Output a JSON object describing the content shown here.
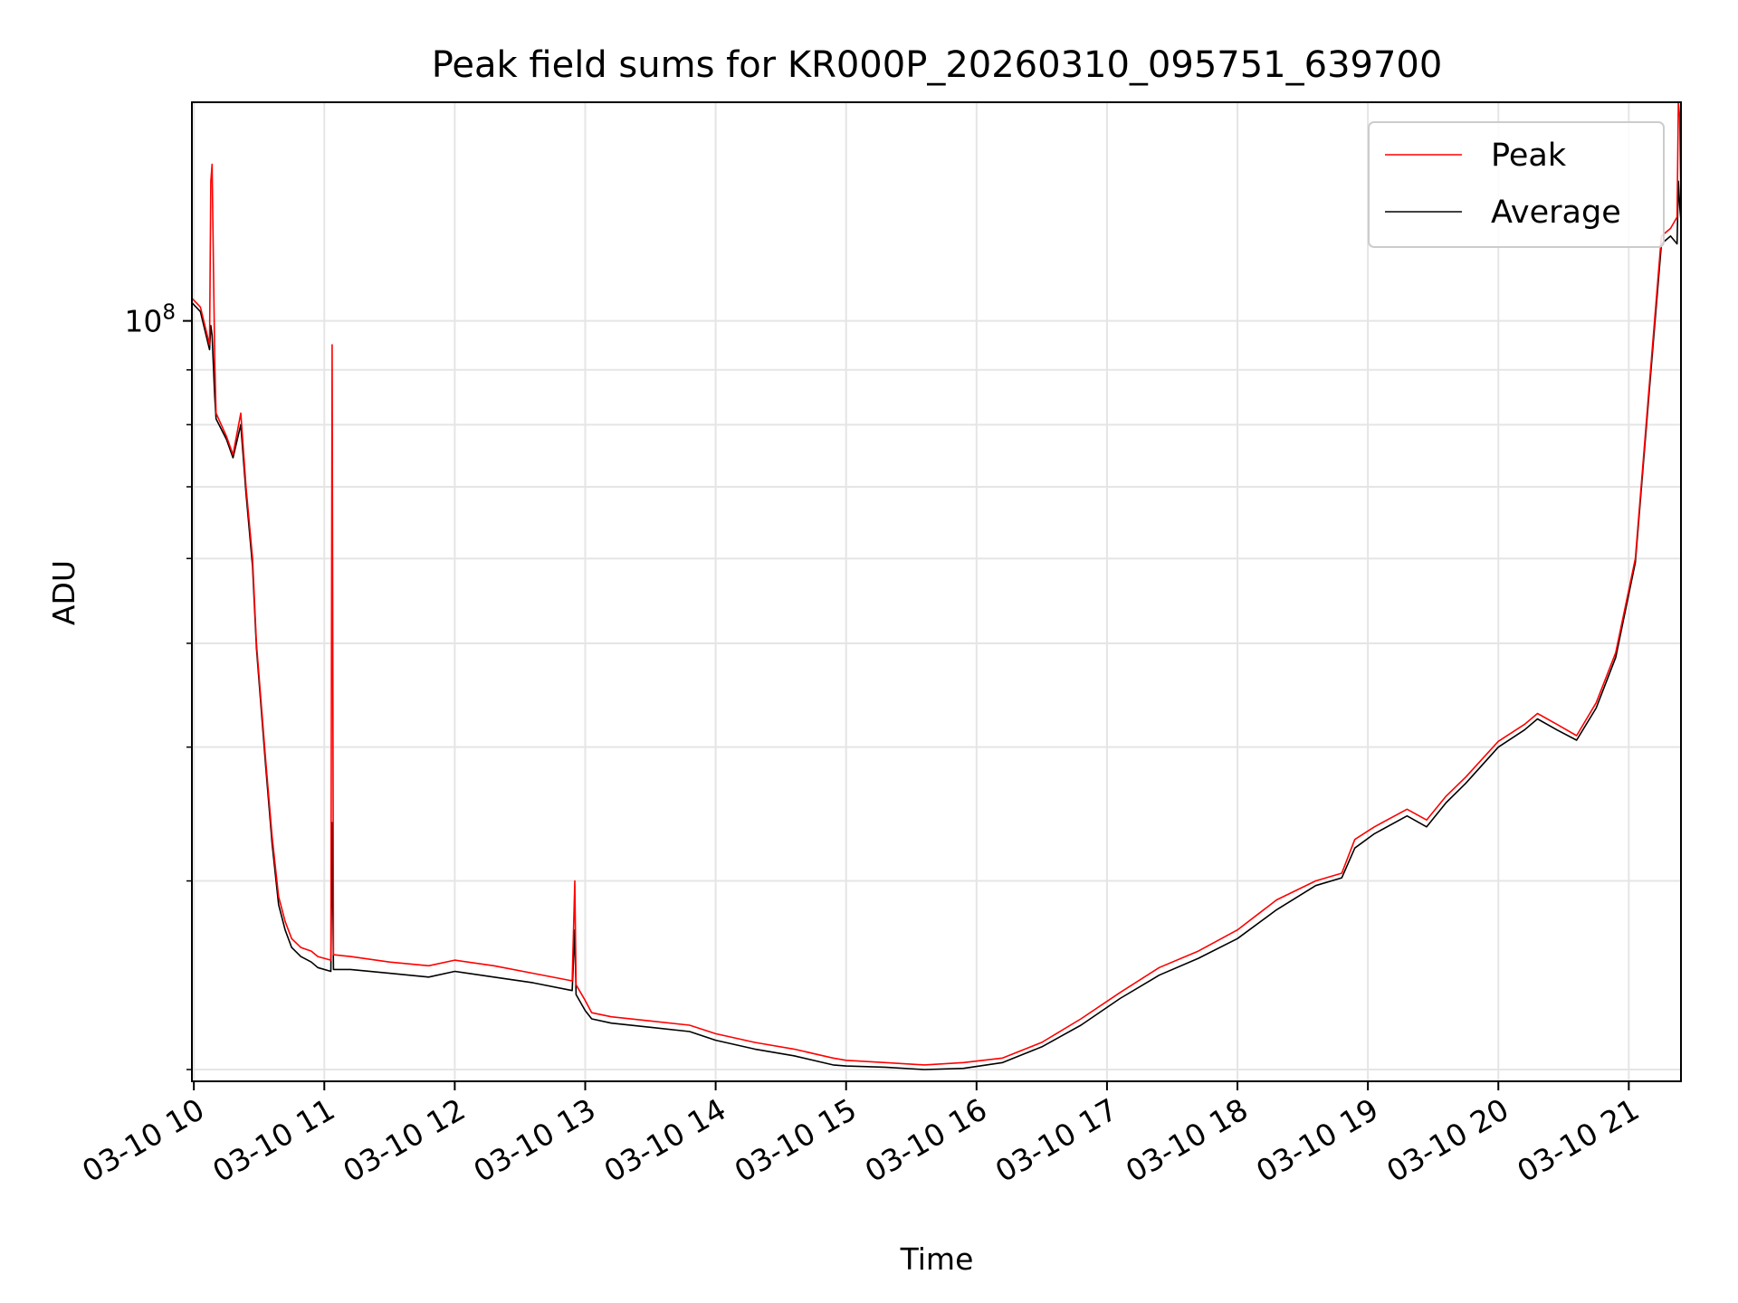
{
  "chart_data": {
    "type": "line",
    "title": "Peak field sums for KR000P_20260310_095751_639700",
    "xlabel": "Time",
    "ylabel": "ADU",
    "yscale": "log",
    "ylim": [
      19500000,
      160000000
    ],
    "xlim": [
      9.985,
      21.4
    ],
    "x_unit": "hours (2026-03-10)",
    "grid": true,
    "legend_position": "upper right",
    "x_ticks": [
      {
        "value": 10,
        "label": "03-10 10"
      },
      {
        "value": 11,
        "label": "03-10 11"
      },
      {
        "value": 12,
        "label": "03-10 12"
      },
      {
        "value": 13,
        "label": "03-10 13"
      },
      {
        "value": 14,
        "label": "03-10 14"
      },
      {
        "value": 15,
        "label": "03-10 15"
      },
      {
        "value": 16,
        "label": "03-10 16"
      },
      {
        "value": 17,
        "label": "03-10 17"
      },
      {
        "value": 18,
        "label": "03-10 18"
      },
      {
        "value": 19,
        "label": "03-10 19"
      },
      {
        "value": 20,
        "label": "03-10 20"
      },
      {
        "value": 21,
        "label": "03-10 21"
      }
    ],
    "y_major_ticks": [
      {
        "value": 100000000,
        "label_base": "10",
        "label_exp": "8"
      }
    ],
    "y_minor_ticks": [
      20000000,
      30000000,
      40000000,
      50000000,
      60000000,
      70000000,
      80000000,
      90000000
    ],
    "series": [
      {
        "name": "Peak",
        "color": "#ff0000",
        "x": [
          9.985,
          10.05,
          10.12,
          10.13,
          10.14,
          10.16,
          10.17,
          10.25,
          10.3,
          10.36,
          10.4,
          10.45,
          10.48,
          10.55,
          10.6,
          10.65,
          10.7,
          10.75,
          10.82,
          10.9,
          10.95,
          11.05,
          11.06,
          11.07,
          11.2,
          11.5,
          11.8,
          12.0,
          12.3,
          12.6,
          12.9,
          12.92,
          12.93,
          13.0,
          13.05,
          13.2,
          13.5,
          13.8,
          14.0,
          14.3,
          14.6,
          14.9,
          15.0,
          15.3,
          15.6,
          15.9,
          16.2,
          16.5,
          16.8,
          17.1,
          17.4,
          17.7,
          18.0,
          18.3,
          18.6,
          18.8,
          18.9,
          19.05,
          19.3,
          19.45,
          19.6,
          19.75,
          20.0,
          20.2,
          20.3,
          20.45,
          20.6,
          20.75,
          20.9,
          21.05,
          21.15,
          21.25,
          21.32,
          21.37,
          21.38,
          21.39,
          21.4
        ],
        "values": [
          105000000,
          103000000,
          95000000,
          135000000,
          140000000,
          92000000,
          82000000,
          78000000,
          75000000,
          82000000,
          70000000,
          60000000,
          50000000,
          39000000,
          33000000,
          29000000,
          27500000,
          26500000,
          26000000,
          25800000,
          25500000,
          25300000,
          95000000,
          25600000,
          25500000,
          25200000,
          25000000,
          25300000,
          25000000,
          24600000,
          24200000,
          30000000,
          24000000,
          23200000,
          22600000,
          22400000,
          22200000,
          22000000,
          21600000,
          21200000,
          20900000,
          20500000,
          20400000,
          20300000,
          20200000,
          20300000,
          20500000,
          21200000,
          22300000,
          23600000,
          24900000,
          25800000,
          27000000,
          28800000,
          30000000,
          30500000,
          32800000,
          33700000,
          35000000,
          34200000,
          36000000,
          37500000,
          40500000,
          42000000,
          43000000,
          42000000,
          41000000,
          44000000,
          49000000,
          60000000,
          85000000,
          120000000,
          122000000,
          125000000,
          160000000,
          155000000,
          128000000
        ]
      },
      {
        "name": "Average",
        "color": "#000000",
        "x": [
          9.985,
          10.05,
          10.12,
          10.13,
          10.14,
          10.16,
          10.17,
          10.25,
          10.3,
          10.36,
          10.4,
          10.45,
          10.48,
          10.55,
          10.6,
          10.65,
          10.7,
          10.75,
          10.82,
          10.9,
          10.95,
          11.05,
          11.06,
          11.07,
          11.2,
          11.5,
          11.8,
          12.0,
          12.3,
          12.6,
          12.9,
          12.92,
          12.93,
          13.0,
          13.05,
          13.2,
          13.5,
          13.8,
          14.0,
          14.3,
          14.6,
          14.9,
          15.0,
          15.3,
          15.6,
          15.9,
          16.2,
          16.5,
          16.8,
          17.1,
          17.4,
          17.7,
          18.0,
          18.3,
          18.6,
          18.8,
          18.9,
          19.05,
          19.3,
          19.45,
          19.6,
          19.75,
          20.0,
          20.2,
          20.3,
          20.45,
          20.6,
          20.75,
          20.9,
          21.05,
          21.15,
          21.25,
          21.32,
          21.37,
          21.38,
          21.39,
          21.4
        ],
        "values": [
          104000000,
          102000000,
          94000000,
          99000000,
          97000000,
          85000000,
          81000000,
          77500000,
          74500000,
          80000000,
          69000000,
          59000000,
          49500000,
          38500000,
          32500000,
          28500000,
          27000000,
          26000000,
          25500000,
          25200000,
          24900000,
          24700000,
          34000000,
          24800000,
          24800000,
          24600000,
          24400000,
          24700000,
          24400000,
          24100000,
          23700000,
          27000000,
          23500000,
          22700000,
          22300000,
          22100000,
          21900000,
          21700000,
          21300000,
          20900000,
          20600000,
          20200000,
          20150000,
          20100000,
          20000000,
          20050000,
          20300000,
          21000000,
          22000000,
          23300000,
          24500000,
          25400000,
          26500000,
          28200000,
          29700000,
          30200000,
          32200000,
          33200000,
          34500000,
          33700000,
          35500000,
          37000000,
          40000000,
          41500000,
          42500000,
          41500000,
          40600000,
          43500000,
          48500000,
          59500000,
          84000000,
          118000000,
          120000000,
          118000000,
          135000000,
          128000000,
          124000000
        ]
      }
    ]
  }
}
